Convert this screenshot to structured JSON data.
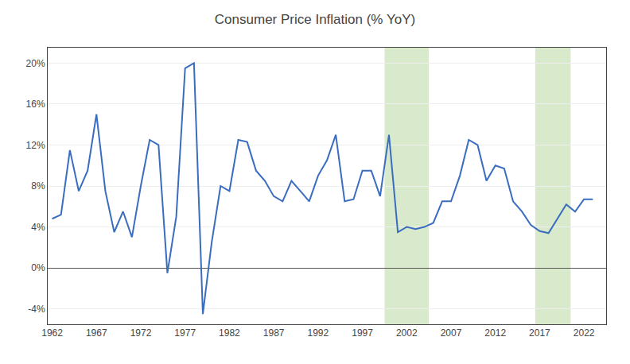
{
  "chart_data": {
    "type": "line",
    "title": "Consumer Price Inflation (% YoY)",
    "x": [
      1962,
      1963,
      1964,
      1965,
      1966,
      1967,
      1968,
      1969,
      1970,
      1971,
      1972,
      1973,
      1974,
      1975,
      1976,
      1977,
      1978,
      1979,
      1980,
      1981,
      1982,
      1983,
      1984,
      1985,
      1986,
      1987,
      1988,
      1989,
      1990,
      1991,
      1992,
      1993,
      1994,
      1995,
      1996,
      1997,
      1998,
      1999,
      2000,
      2001,
      2002,
      2003,
      2004,
      2005,
      2006,
      2007,
      2008,
      2009,
      2010,
      2011,
      2012,
      2013,
      2014,
      2015,
      2016,
      2017,
      2018,
      2019,
      2020,
      2021,
      2022,
      2023
    ],
    "values": [
      4.8,
      5.2,
      11.5,
      7.5,
      9.5,
      15.0,
      7.5,
      3.5,
      5.5,
      3.0,
      8.0,
      12.5,
      12.0,
      -0.5,
      5.0,
      19.5,
      20.0,
      -4.5,
      2.5,
      8.0,
      7.5,
      12.5,
      12.3,
      9.5,
      8.5,
      7.0,
      6.5,
      8.5,
      7.5,
      6.5,
      9.0,
      10.5,
      13.0,
      6.5,
      6.7,
      9.5,
      9.5,
      7.0,
      13.0,
      3.5,
      4.0,
      3.8,
      4.0,
      4.4,
      6.5,
      6.5,
      9.0,
      12.5,
      12.0,
      8.5,
      10.0,
      9.7,
      6.5,
      5.5,
      4.2,
      3.6,
      3.4,
      4.8,
      6.2,
      5.5,
      6.7,
      6.7
    ],
    "color": "#3a6dbf",
    "shaded_regions": [
      {
        "start": 1999.5,
        "end": 2004.5,
        "color": "#b8d9a0"
      },
      {
        "start": 2016.5,
        "end": 2020.5,
        "color": "#b8d9a0"
      }
    ],
    "xlim": [
      1961.5,
      2024.5
    ],
    "xticks": [
      1962,
      1967,
      1972,
      1977,
      1982,
      1987,
      1992,
      1997,
      2002,
      2007,
      2012,
      2017,
      2022
    ],
    "ylim": [
      -5.5,
      21.5
    ],
    "yticks": [
      {
        "value": -4,
        "label": "-4%"
      },
      {
        "value": 0,
        "label": "0%"
      },
      {
        "value": 4,
        "label": "4%"
      },
      {
        "value": 8,
        "label": "8%"
      },
      {
        "value": 12,
        "label": "12%"
      },
      {
        "value": 16,
        "label": "16%"
      },
      {
        "value": 20,
        "label": "20%"
      }
    ],
    "grid": true
  }
}
